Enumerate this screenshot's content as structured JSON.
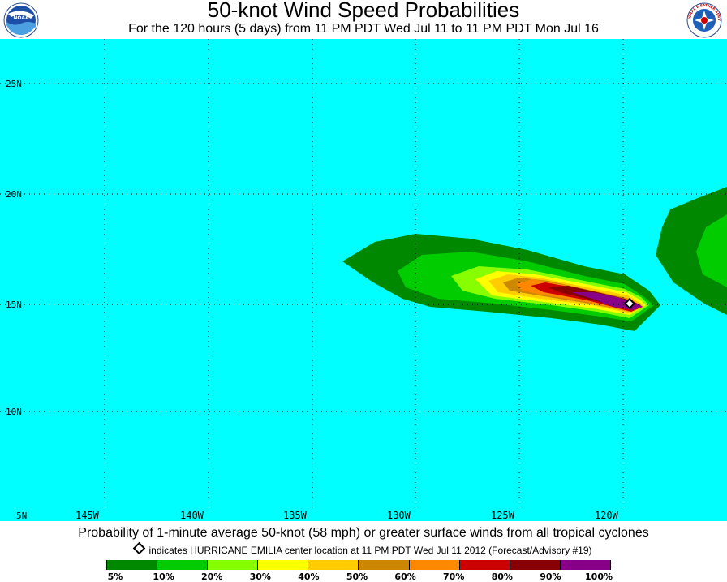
{
  "header": {
    "title": "50-knot Wind Speed Probabilities",
    "subtitle": "For the 120 hours (5 days) from 11 PM PDT Wed Jul 11 to 11 PM PDT Mon Jul 16"
  },
  "logos": {
    "left": "noaa-logo",
    "right": "nws-logo",
    "left_text": "NOAA",
    "right_text": "NATIONAL WEATHER SERVICE"
  },
  "map": {
    "ocean_color": "#00ffff",
    "latitude_labels": [
      "25N",
      "20N",
      "15N",
      "10N",
      "5N"
    ],
    "longitude_labels": [
      "145W",
      "140W",
      "135W",
      "130W",
      "125W",
      "120W"
    ],
    "storm_center": {
      "lat": 15.1,
      "lon": 119.6
    }
  },
  "footer": {
    "caption": "Probability of 1-minute average 50-knot (58 mph) or greater surface winds from all tropical cyclones",
    "note": "indicates HURRICANE EMILIA center location at 11 PM PDT Wed Jul 11 2012 (Forecast/Advisory #19)"
  },
  "legend": {
    "colors": [
      "#008800",
      "#00cc00",
      "#88ff00",
      "#ffff00",
      "#ffcc00",
      "#cc8800",
      "#ff8800",
      "#cc0000",
      "#880000",
      "#880088"
    ],
    "labels": [
      "5%",
      "10%",
      "20%",
      "30%",
      "40%",
      "50%",
      "60%",
      "70%",
      "80%",
      "90%",
      "100%"
    ]
  }
}
